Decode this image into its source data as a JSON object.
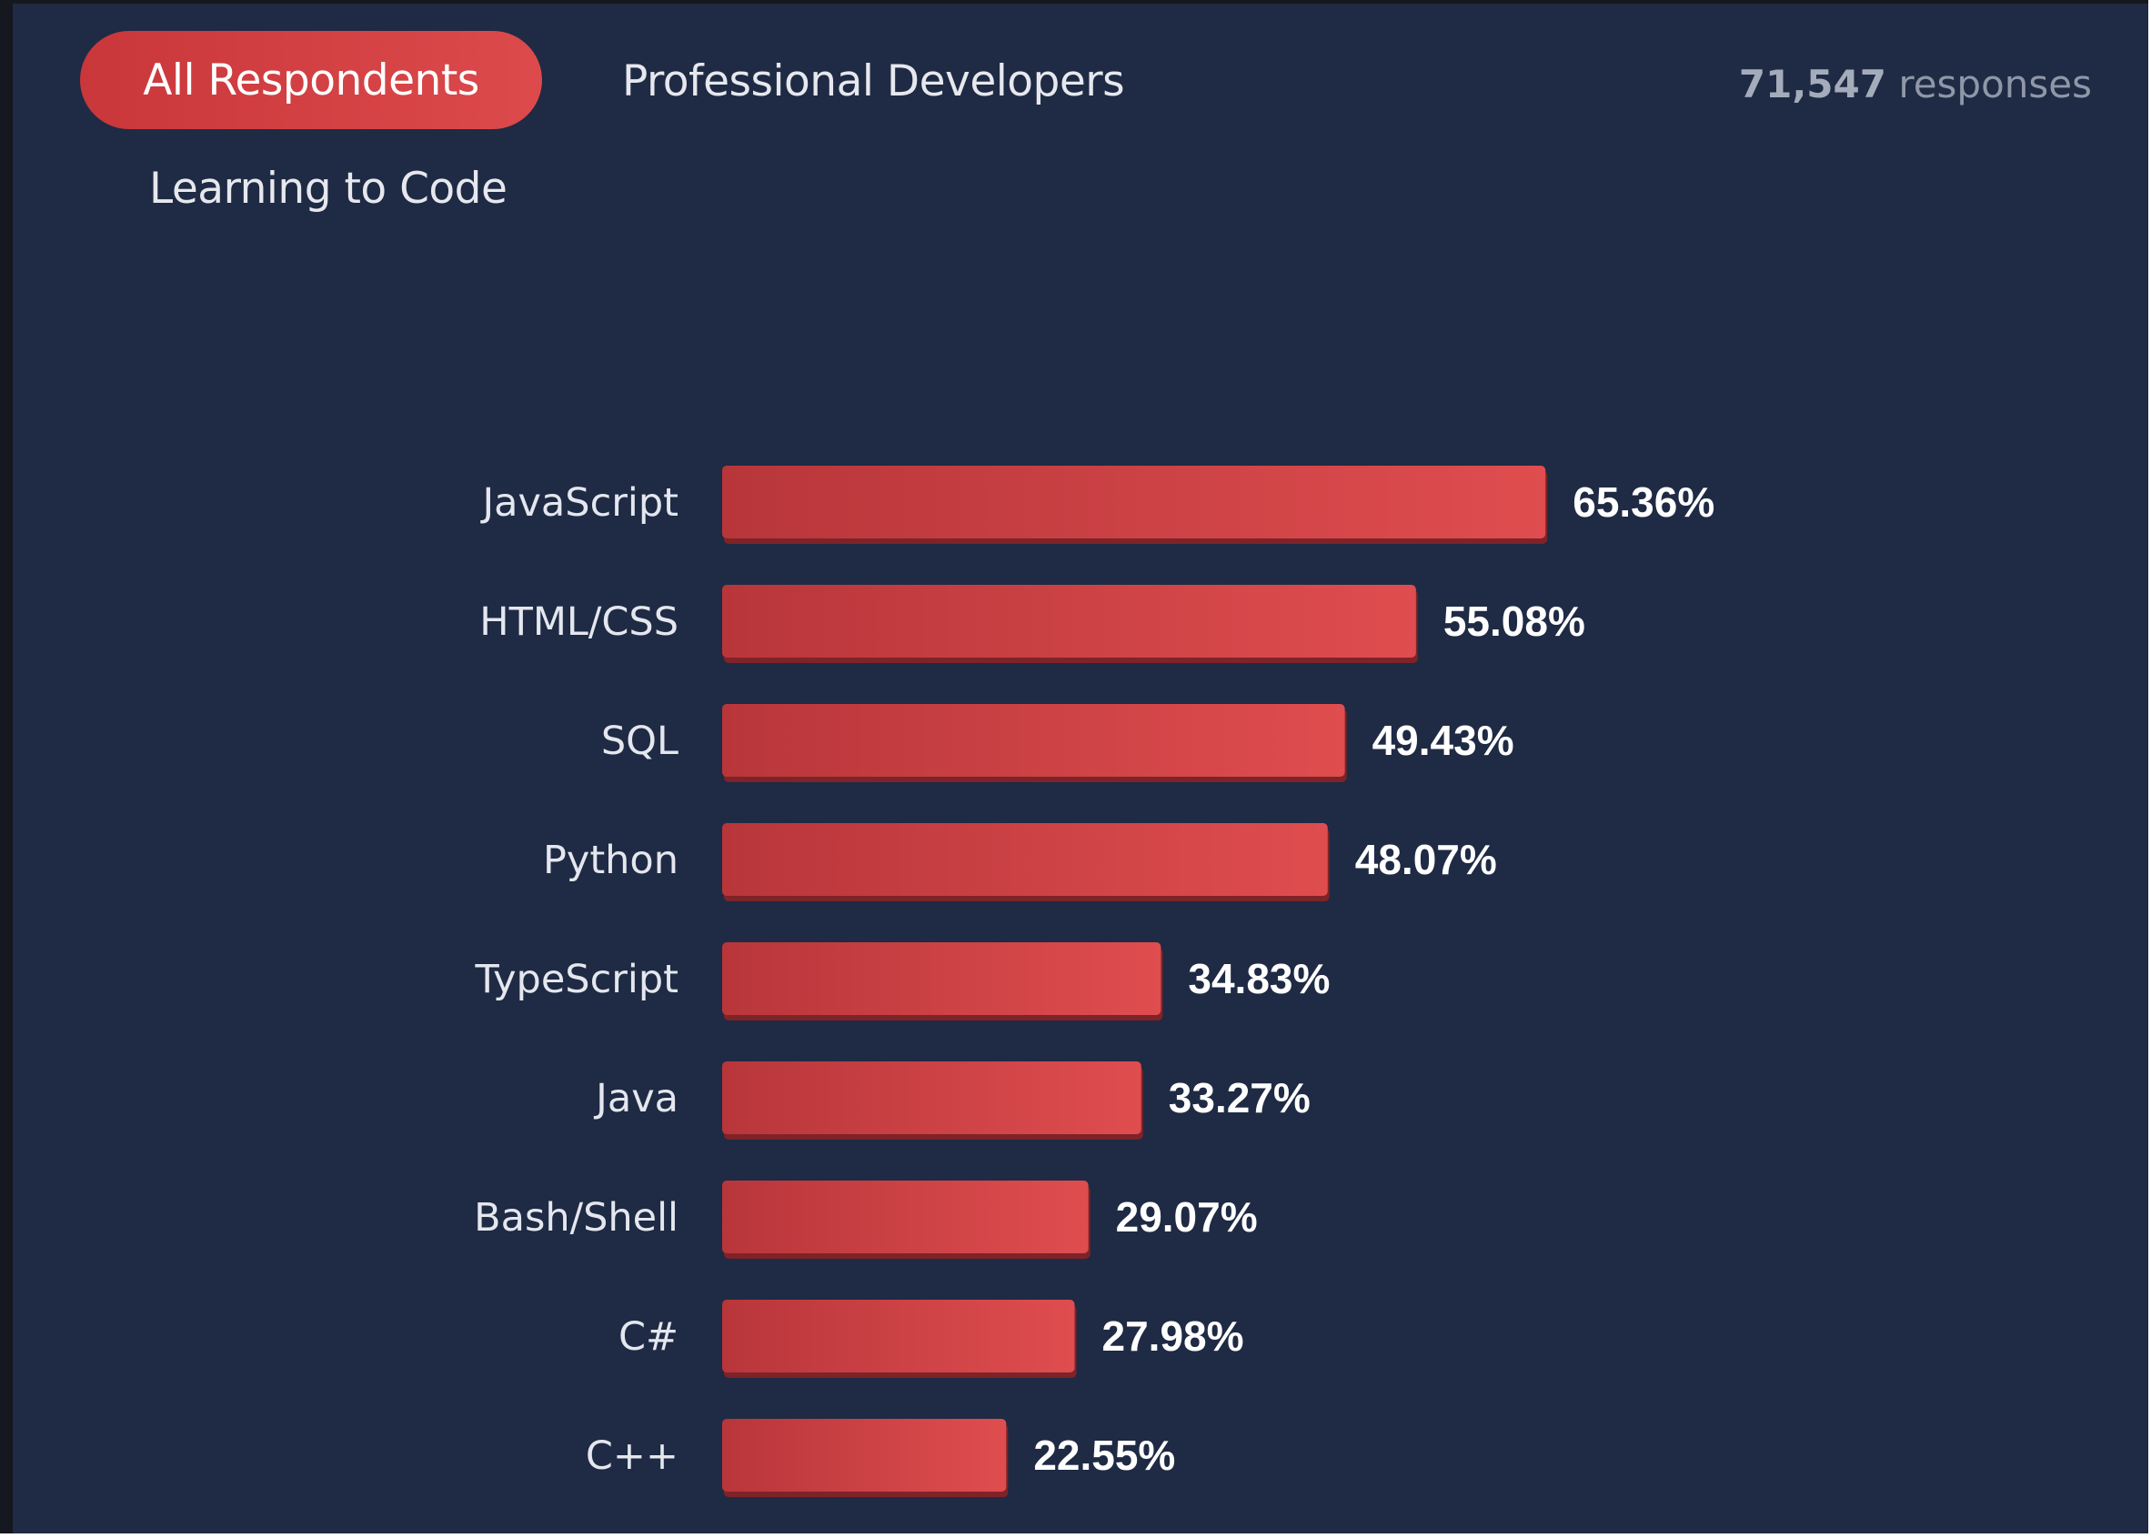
{
  "tabs": [
    {
      "label": "All Respondents",
      "active": true
    },
    {
      "label": "Professional Developers",
      "active": false
    },
    {
      "label": "Learning to Code",
      "active": false
    }
  ],
  "responses": {
    "count": "71,547",
    "label": "responses"
  },
  "colors": {
    "background": "#1f2a44",
    "bar": "#d9474a",
    "active_tab": "#d44446"
  },
  "chart_data": {
    "type": "bar",
    "orientation": "horizontal",
    "categories": [
      "JavaScript",
      "HTML/CSS",
      "SQL",
      "Python",
      "TypeScript",
      "Java",
      "Bash/Shell",
      "C#",
      "C++"
    ],
    "values": [
      65.36,
      55.08,
      49.43,
      48.07,
      34.83,
      33.27,
      29.07,
      27.98,
      22.55
    ],
    "value_labels": [
      "65.36%",
      "55.08%",
      "49.43%",
      "48.07%",
      "34.83%",
      "33.27%",
      "29.07%",
      "27.98%",
      "22.55%"
    ],
    "unit": "%",
    "title": "",
    "xlabel": "",
    "ylabel": "",
    "xlim": [
      0,
      100
    ],
    "grid": false,
    "legend": false
  }
}
